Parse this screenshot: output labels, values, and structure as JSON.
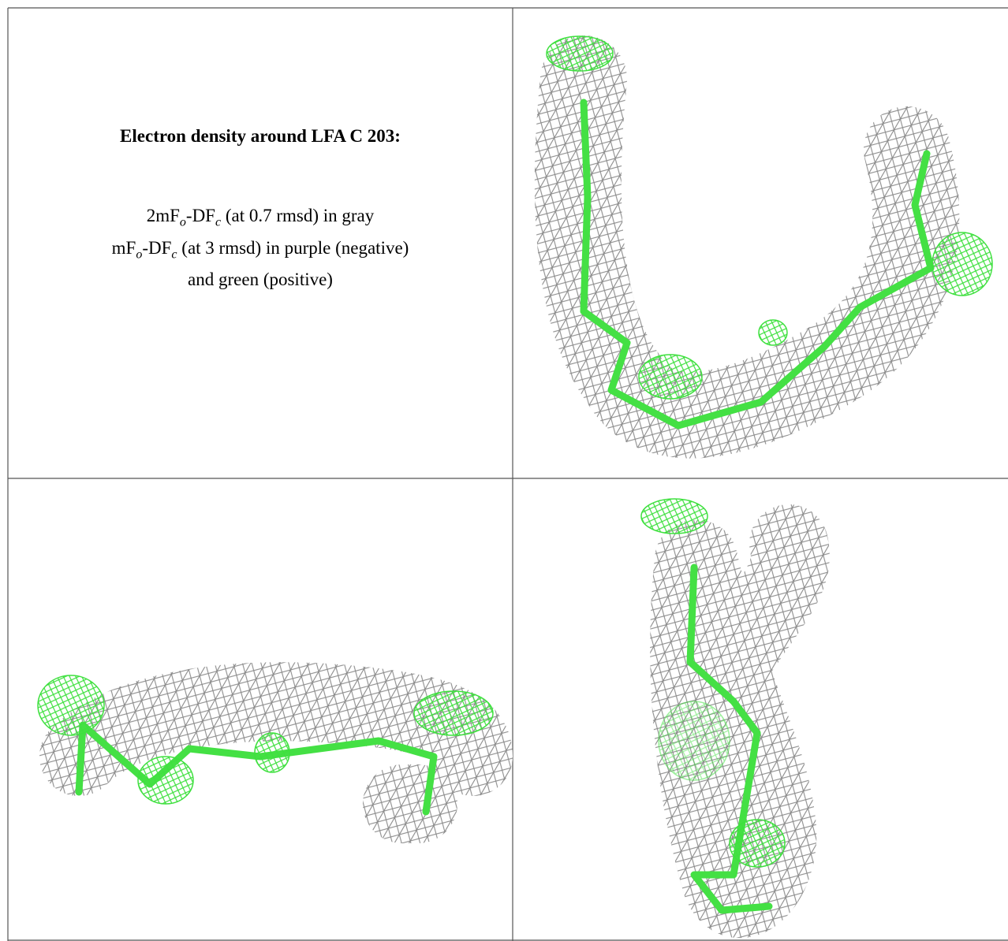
{
  "title": "Electron density around LFA C 203:",
  "legend": [
    [
      "2mF",
      "o",
      "-DF",
      "c",
      " (at 0.7 rmsd) in gray"
    ],
    [
      "mF",
      "o",
      "-DF",
      "c",
      " (at 3 rmsd) in purple (negative)"
    ],
    [
      "and green (positive)"
    ]
  ]
}
